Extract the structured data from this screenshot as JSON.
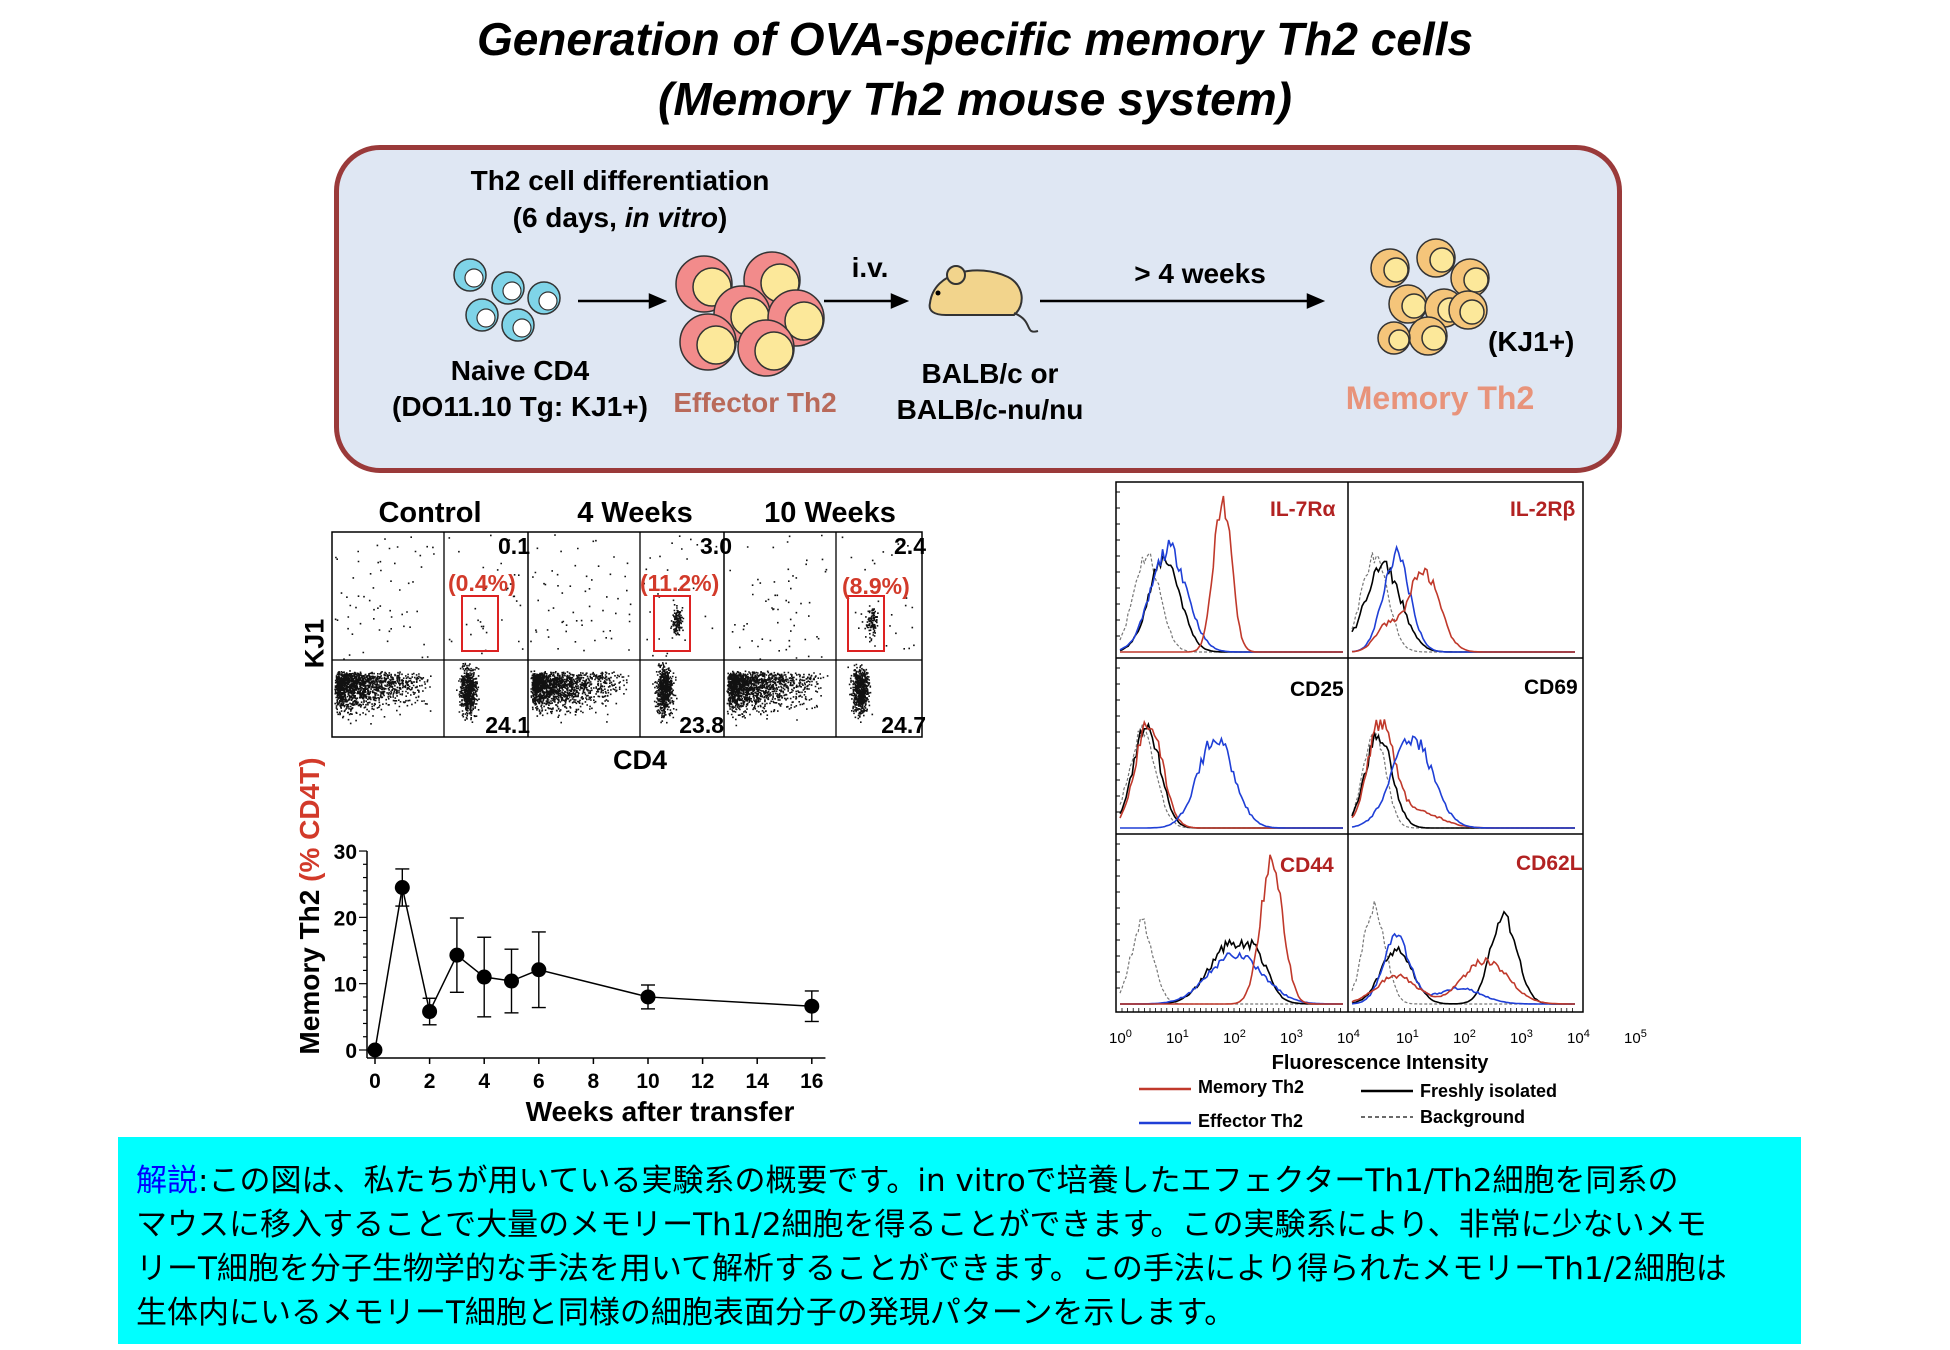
{
  "title": {
    "line1": "Generation of OVA-specific memory Th2 cells",
    "line2": "(Memory Th2 mouse system)"
  },
  "scheme": {
    "step1_line1": "Th2 cell differentiation",
    "step1_line2_a": "(6 days, ",
    "step1_line2_b": "in vitro",
    "step1_line2_c": ")",
    "naive_line1": "Naive CD4",
    "naive_line2": "(DO11.10 Tg: KJ1+)",
    "effector": "Effector Th2",
    "iv": "i.v.",
    "mouse_line1": "BALB/c or",
    "mouse_line2": "BALB/c-nu/nu",
    "weeks": "> 4 weeks",
    "kj1": "(KJ1+)",
    "memory": "Memory Th2",
    "colors": {
      "naive": "#7fd4e8",
      "effector_outer": "#f28b8b",
      "effector_inner": "#fce89a",
      "memory": "#f5c57a",
      "mouse": "#f2d48c",
      "border": "#9a3a3a",
      "box": "#dfe7f3"
    }
  },
  "facs": {
    "panels": [
      {
        "title": "Control",
        "upper_right": "0.1",
        "percent": "(0.4%)",
        "lower_right": "24.1"
      },
      {
        "title": "4 Weeks",
        "upper_right": "3.0",
        "percent": "(11.2%)",
        "lower_right": "23.8"
      },
      {
        "title": "10 Weeks",
        "upper_right": "2.4",
        "percent": "(8.9%)",
        "lower_right": "24.7"
      }
    ],
    "ylabel": "KJ1",
    "xlabel": "CD4"
  },
  "chart_data": [
    {
      "type": "line",
      "xlabel": "Weeks after transfer",
      "ylabel_a": "Memory Th2 ",
      "ylabel_b": "(% CD4T)",
      "x": [
        0,
        1,
        2,
        3,
        4,
        5,
        6,
        10,
        16
      ],
      "y": [
        0,
        24.5,
        5.8,
        14.3,
        11.0,
        10.4,
        12.1,
        8.0,
        6.6
      ],
      "err": [
        0,
        2.8,
        2.0,
        5.6,
        6.0,
        4.8,
        5.7,
        1.8,
        2.3
      ],
      "xticks": [
        0,
        2,
        4,
        6,
        8,
        10,
        12,
        14,
        16
      ],
      "yticks": [
        0,
        10,
        20,
        30
      ],
      "xlim": [
        0,
        16.5
      ],
      "ylim": [
        0,
        30
      ]
    },
    {
      "type": "line",
      "panels": [
        "IL-7Rα",
        "IL-2Rβ",
        "CD25",
        "CD69",
        "CD44",
        "CD62L"
      ],
      "panel_colors": [
        "#b22222",
        "#b22222",
        "#000000",
        "#000000",
        "#b22222",
        "#b22222"
      ],
      "xlabel": "Fluorescence Intensity",
      "xticks_base": [
        "10",
        "10",
        "10",
        "10",
        "10",
        "10",
        "10",
        "10",
        "10",
        "10"
      ],
      "xticks_exp": [
        "0",
        "1",
        "2",
        "3",
        "4",
        "1",
        "2",
        "3",
        "4",
        "5"
      ],
      "legend": [
        {
          "name": "Memory Th2",
          "color": "#c0392b",
          "dash": false
        },
        {
          "name": "Effector Th2",
          "color": "#1f3fd6",
          "dash": false
        },
        {
          "name": "Freshly isolated",
          "color": "#000000",
          "dash": false
        },
        {
          "name": "Background",
          "color": "#666666",
          "dash": true
        }
      ]
    }
  ],
  "explanation": {
    "head": "解説",
    "line1": ":この図は、私たちが用いている実験系の概要です。in vitroで培養したエフェクターTh1/Th2細胞を同系の",
    "line2": "マウスに移入することで大量のメモリーTh1/2細胞を得ることができます。この実験系により、非常に少ないメモ",
    "line3": "リーT細胞を分子生物学的な手法を用いて解析することができます。この手法により得られたメモリーTh1/2細胞は",
    "line4": "生体内にいるメモリーT細胞と同様の細胞表面分子の発現パターンを示します。"
  }
}
